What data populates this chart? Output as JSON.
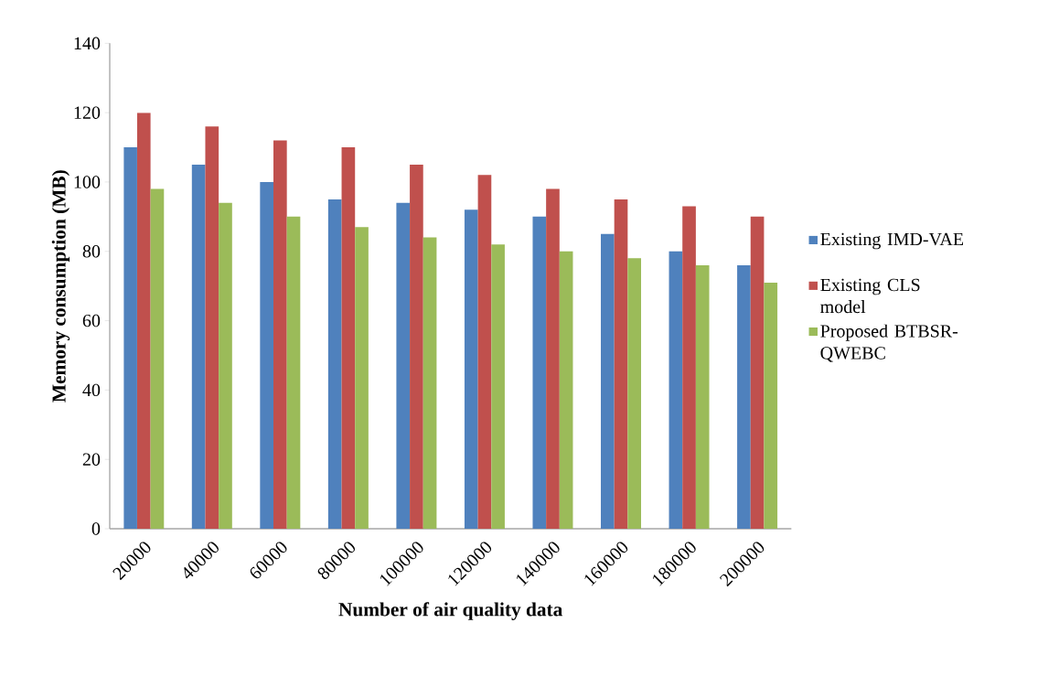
{
  "chart_data": {
    "type": "bar",
    "xlabel": "Number of air quality data",
    "ylabel": "Memory consumption  (MB)",
    "categories": [
      "20000",
      "40000",
      "60000",
      "80000",
      "100000",
      "120000",
      "140000",
      "160000",
      "180000",
      "200000"
    ],
    "series": [
      {
        "name": "Existing IMD-VAE",
        "color": "#4f81bd",
        "values": [
          110,
          105,
          100,
          95,
          94,
          92,
          90,
          85,
          80,
          76
        ]
      },
      {
        "name": "Existing CLS model",
        "color": "#c0504d",
        "values": [
          120,
          116,
          112,
          110,
          105,
          102,
          98,
          95,
          93,
          90
        ]
      },
      {
        "name": "Proposed BTBSR-QWEBC",
        "color": "#9bbb59",
        "values": [
          98,
          94,
          90,
          87,
          84,
          82,
          80,
          78,
          76,
          71
        ]
      }
    ],
    "ylim": [
      0,
      140
    ],
    "yticks": [
      0,
      20,
      40,
      60,
      80,
      100,
      120,
      140
    ],
    "grid": false,
    "legend": "right"
  }
}
